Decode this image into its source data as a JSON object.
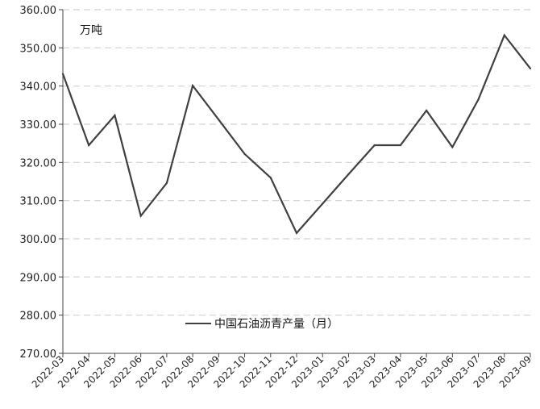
{
  "chart_data": {
    "type": "line",
    "unit_label": "万吨",
    "x": [
      "2022-03",
      "2022-04",
      "2022-05",
      "2022-06",
      "2022-07",
      "2022-08",
      "2022-09",
      "2022-10",
      "2022-11",
      "2022-12",
      "2023-01",
      "2023-02",
      "2023-03",
      "2023-04",
      "2023-05",
      "2023-06",
      "2023-07",
      "2023-08",
      "2023-09"
    ],
    "yticks": [
      "270.00",
      "280.00",
      "290.00",
      "300.00",
      "310.00",
      "320.00",
      "330.00",
      "340.00",
      "350.00",
      "360.00"
    ],
    "ylim": [
      270,
      360
    ],
    "grid": "horizontal dashed",
    "legend_position": "lower-center",
    "series": [
      {
        "name": "中国石油沥青产量（月）",
        "color": "#404040",
        "values": [
          343.2,
          324.5,
          332.3,
          306.0,
          314.6,
          340.1,
          331.2,
          322.2,
          316.0,
          301.5,
          309.2,
          316.9,
          324.5,
          324.5,
          333.6,
          324.0,
          336.5,
          353.3,
          344.6
        ]
      }
    ]
  }
}
